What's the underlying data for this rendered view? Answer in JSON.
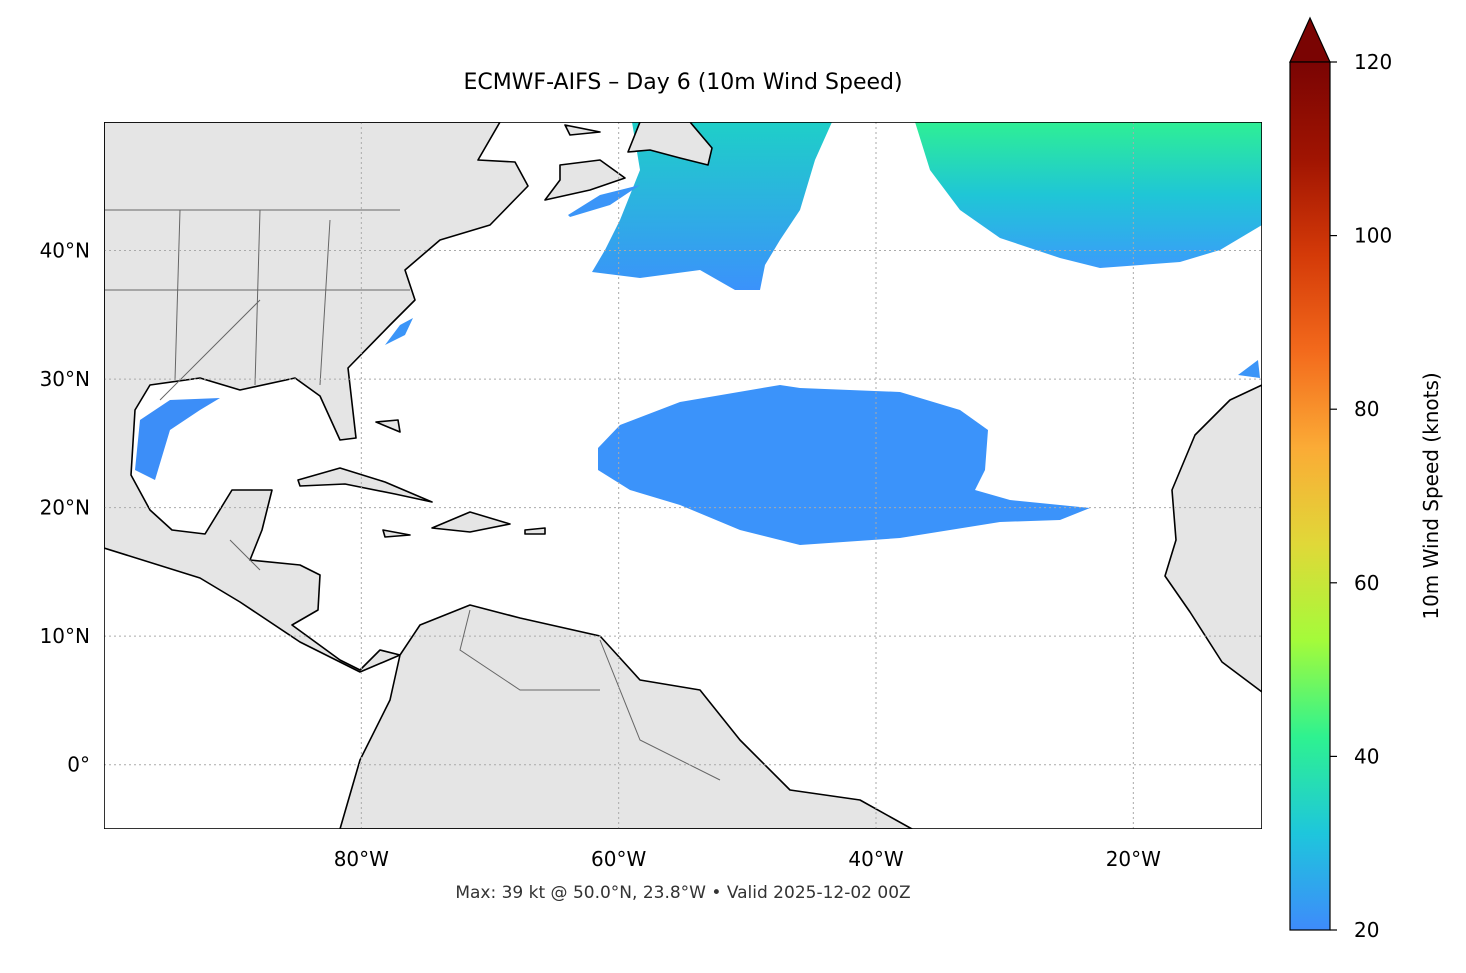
{
  "map": {
    "title": "ECMWF-AIFS – Day 6 (10m Wind Speed)",
    "lonlim": [
      -100,
      -10
    ],
    "latlim": [
      -5,
      50
    ],
    "lon_ticks": [
      {
        "value": -80,
        "label": "80°W"
      },
      {
        "value": -60,
        "label": "60°W"
      },
      {
        "value": -40,
        "label": "40°W"
      },
      {
        "value": -20,
        "label": "20°W"
      }
    ],
    "lat_ticks": [
      {
        "value": 40,
        "label": "40°N"
      },
      {
        "value": 30,
        "label": "30°N"
      },
      {
        "value": 20,
        "label": "20°N"
      },
      {
        "value": 10,
        "label": "10°N"
      },
      {
        "value": 0,
        "label": "0°"
      }
    ],
    "footnote": "Max: 39 kt @ 50.0°N, 23.8°W • Valid 2025-12-02 00Z",
    "colorbar": {
      "label": "10m Wind Speed (knots)",
      "lim": [
        20,
        120
      ],
      "ticks": [
        20,
        40,
        60,
        80,
        100,
        120
      ],
      "colors": [
        "#3e8bfb",
        "#1ec6dc",
        "#2ef290",
        "#a4fb3a",
        "#e0d838",
        "#fbab36",
        "#f36a1c",
        "#d43a08",
        "#a01402",
        "#7a0403"
      ]
    }
  }
}
